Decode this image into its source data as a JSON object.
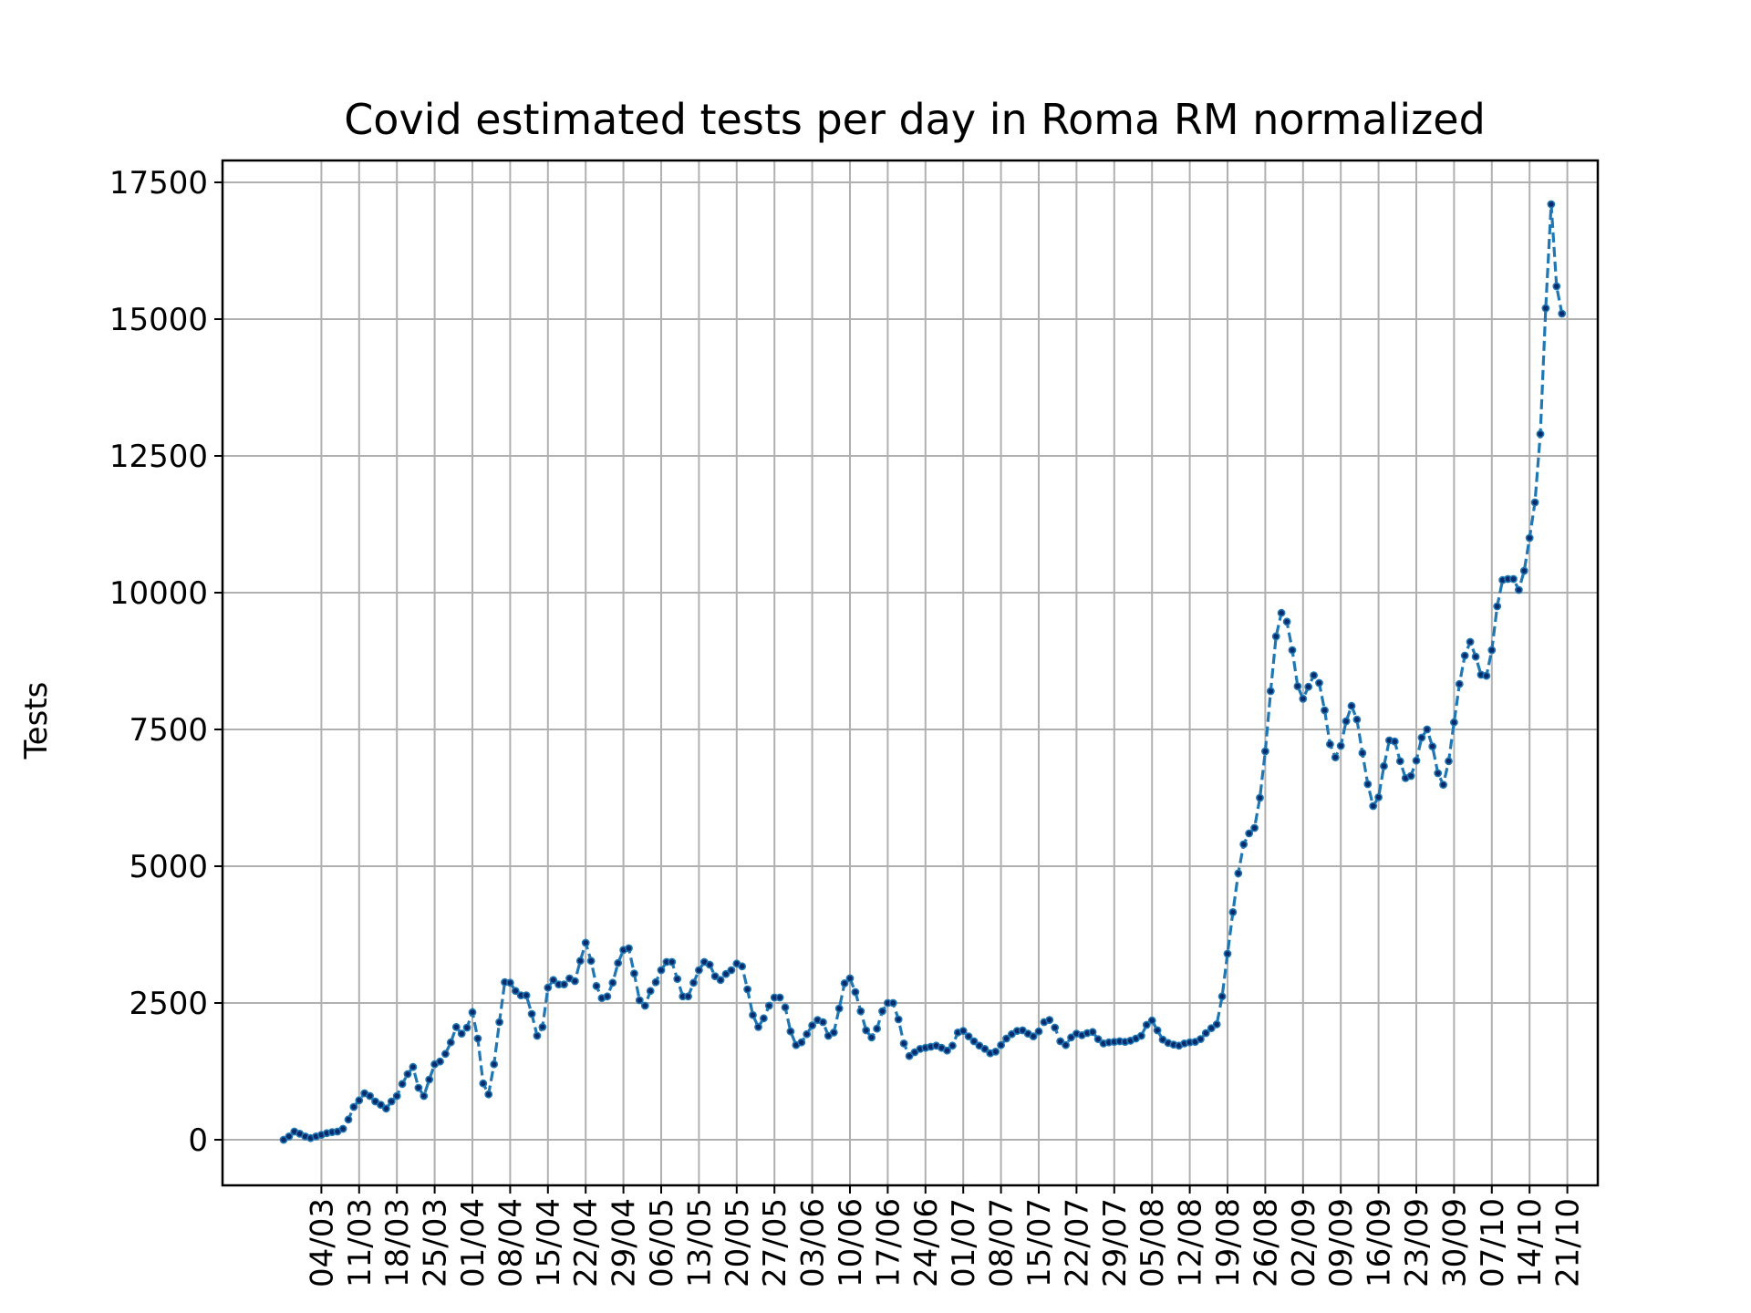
{
  "chart_data": {
    "type": "line",
    "title": "Covid estimated tests per day in Roma RM normalized",
    "xlabel": "",
    "ylabel": "Tests",
    "ylim": [
      -800,
      18000
    ],
    "yticks": [
      0,
      2500,
      5000,
      7500,
      10000,
      12500,
      15000,
      17500
    ],
    "grid": true,
    "line_style": "dashed",
    "marker": "dot",
    "colors": {
      "line": "#1f77b4",
      "marker": "#0a2a6b"
    },
    "x_start_date": "2020-02-26",
    "x_tick_labels": [
      "04/03",
      "11/03",
      "18/03",
      "25/03",
      "01/04",
      "08/04",
      "15/04",
      "22/04",
      "29/04",
      "06/05",
      "13/05",
      "20/05",
      "27/05",
      "03/06",
      "10/06",
      "17/06",
      "24/06",
      "01/07",
      "08/07",
      "15/07",
      "22/07",
      "29/07",
      "05/08",
      "12/08",
      "19/08",
      "26/08",
      "02/09",
      "09/09",
      "16/09",
      "23/09",
      "30/09",
      "07/10",
      "14/10",
      "21/10"
    ],
    "series": [
      {
        "name": "",
        "values": [
          0,
          60,
          150,
          110,
          60,
          30,
          60,
          90,
          120,
          140,
          150,
          200,
          370,
          600,
          720,
          850,
          800,
          700,
          640,
          570,
          700,
          800,
          1020,
          1200,
          1330,
          950,
          800,
          1100,
          1380,
          1430,
          1570,
          1780,
          2060,
          1940,
          2050,
          2330,
          1850,
          1030,
          830,
          1380,
          2150,
          2880,
          2870,
          2720,
          2640,
          2640,
          2300,
          1900,
          2060,
          2780,
          2920,
          2840,
          2840,
          2950,
          2900,
          3270,
          3600,
          3270,
          2810,
          2590,
          2620,
          2870,
          3230,
          3470,
          3500,
          3040,
          2550,
          2450,
          2720,
          2880,
          3100,
          3250,
          3250,
          2940,
          2620,
          2620,
          2870,
          3100,
          3250,
          3200,
          2990,
          2920,
          3030,
          3100,
          3220,
          3170,
          2750,
          2280,
          2060,
          2220,
          2450,
          2600,
          2600,
          2420,
          1980,
          1730,
          1780,
          1930,
          2090,
          2190,
          2150,
          1900,
          1960,
          2400,
          2860,
          2950,
          2700,
          2350,
          2000,
          1870,
          2030,
          2350,
          2500,
          2500,
          2200,
          1760,
          1530,
          1600,
          1660,
          1680,
          1700,
          1720,
          1680,
          1630,
          1720,
          1960,
          1990,
          1890,
          1800,
          1720,
          1660,
          1580,
          1610,
          1730,
          1850,
          1930,
          1990,
          2000,
          1940,
          1890,
          1980,
          2150,
          2190,
          2050,
          1800,
          1730,
          1870,
          1940,
          1910,
          1950,
          1970,
          1840,
          1760,
          1780,
          1790,
          1800,
          1790,
          1810,
          1850,
          1900,
          2100,
          2180,
          2000,
          1830,
          1770,
          1740,
          1720,
          1760,
          1780,
          1790,
          1840,
          1950,
          2040,
          2110,
          2620,
          3400,
          4160,
          4870,
          5400,
          5600,
          5700,
          6250,
          7100,
          8200,
          9200,
          9630,
          9470,
          8950,
          8290,
          8060,
          8280,
          8490,
          8350,
          7850,
          7230,
          6990,
          7200,
          7650,
          7930,
          7680,
          7070,
          6500,
          6100,
          6260,
          6830,
          7300,
          7280,
          6920,
          6610,
          6650,
          6930,
          7350,
          7500,
          7190,
          6700,
          6490,
          6920,
          7630,
          8330,
          8850,
          9100,
          8830,
          8500,
          8480,
          8950,
          9750,
          10230,
          10250,
          10250,
          10050,
          10400,
          11000,
          11650,
          12900,
          15200,
          17100,
          15600,
          15100
        ]
      }
    ]
  }
}
